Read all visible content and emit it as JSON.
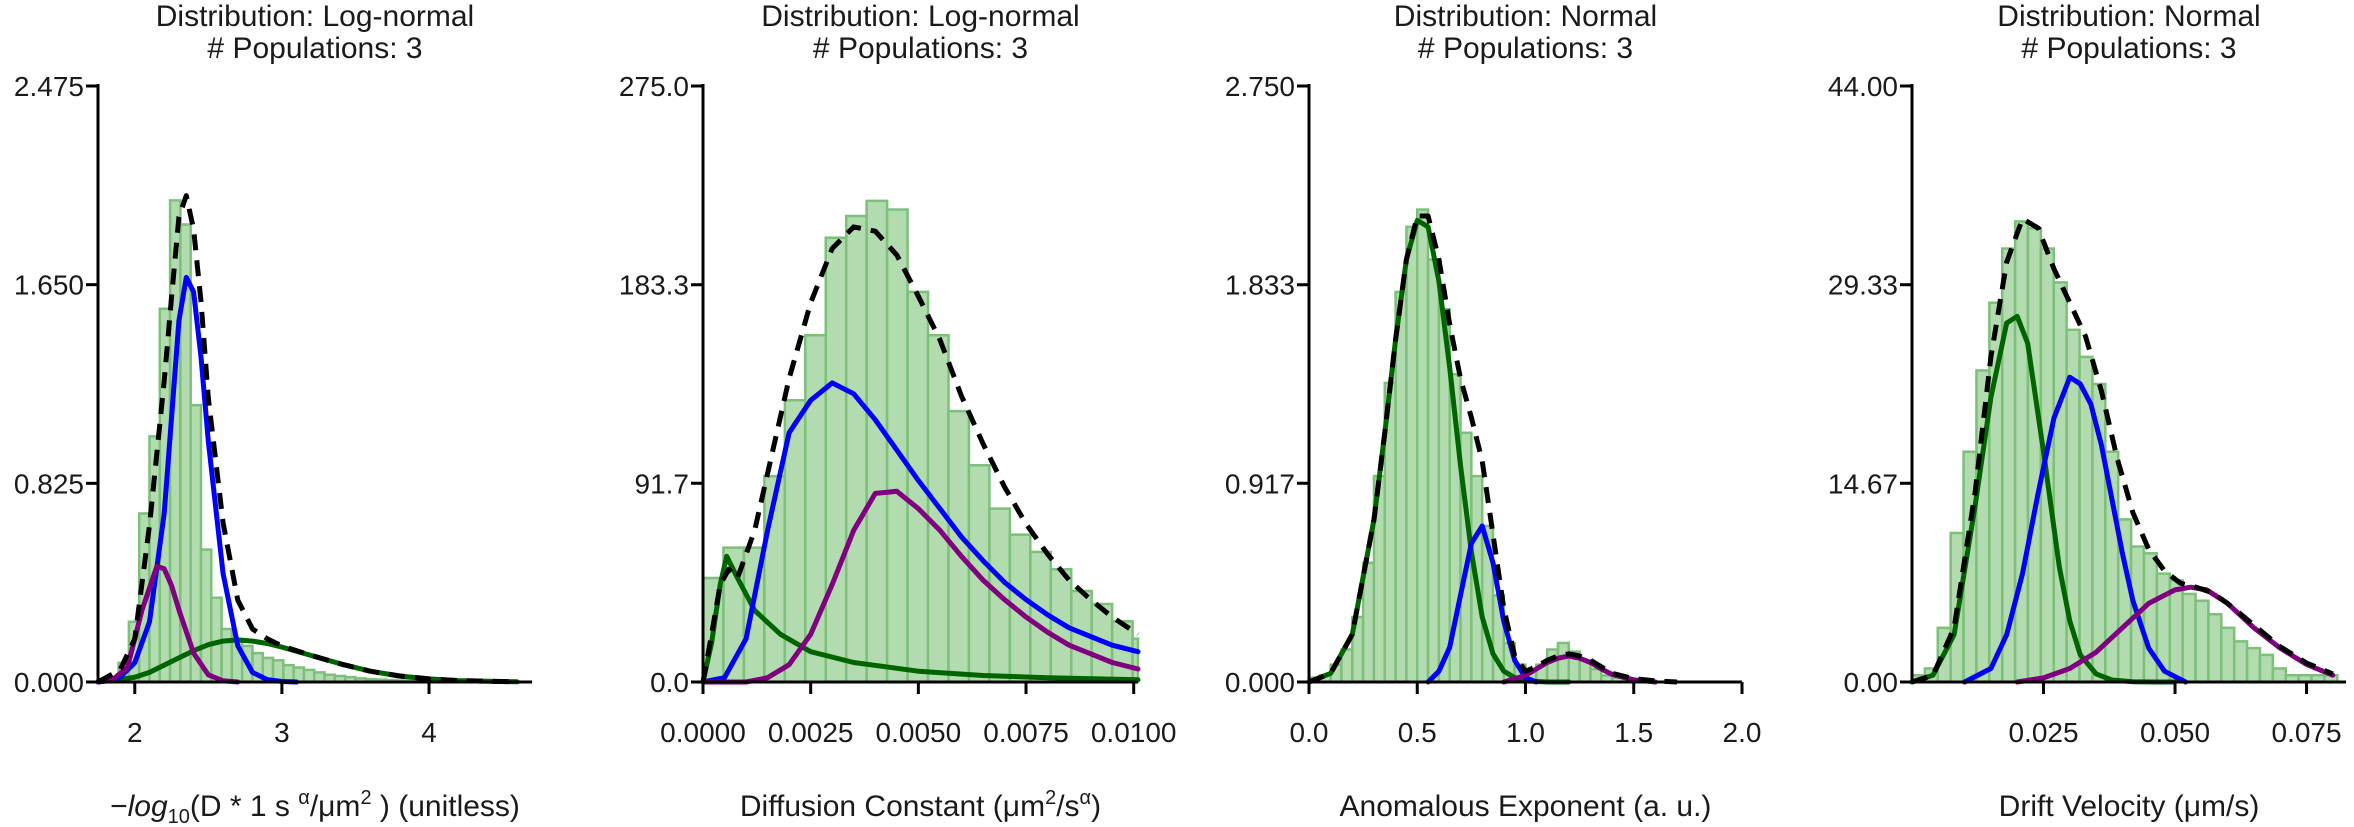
{
  "chart_data": [
    {
      "type": "bar",
      "title": "Distribution: Log-normal",
      "subtitle": "# Populations: 3",
      "xlabel": "−log₁₀(D * 1 s ᵅ/μm² ) (unitless)",
      "xlabel_parts": {
        "prefix": "−",
        "italic": "log",
        "sub": "10",
        "rest": "(D * 1 s ",
        "sup1": "α",
        "mid": "/μm",
        "sup2": "2",
        "tail": " ) (unitless)"
      },
      "xlim": [
        1.75,
        4.7
      ],
      "ylim": [
        0,
        2.475
      ],
      "xticks": [
        2,
        3,
        4
      ],
      "xtick_labels": [
        "2",
        "3",
        "4"
      ],
      "yticks": [
        0,
        0.825,
        1.65,
        2.475
      ],
      "ytick_labels": [
        "0.000",
        "0.825",
        "1.650",
        "2.475"
      ],
      "bins": {
        "x0": 1.75,
        "width": 0.07,
        "values": [
          0.0,
          0.02,
          0.08,
          0.25,
          0.7,
          1.02,
          1.55,
          2.0,
          1.9,
          1.15,
          0.55,
          0.35,
          0.22,
          0.17,
          0.15,
          0.12,
          0.1,
          0.09,
          0.07,
          0.06,
          0.05,
          0.04,
          0.03,
          0.025,
          0.02,
          0.015,
          0.012,
          0.01,
          0.008,
          0.006,
          0.005,
          0.004,
          0.003,
          0.002,
          0.002,
          0.001,
          0.001,
          0.001,
          0.0,
          0.0,
          0.0,
          0.0
        ]
      },
      "series": [
        {
          "color": "#006400",
          "style": "solid",
          "x": [
            1.75,
            1.9,
            2.0,
            2.1,
            2.2,
            2.3,
            2.4,
            2.5,
            2.6,
            2.7,
            2.8,
            2.9,
            3.0,
            3.2,
            3.4,
            3.6,
            3.8,
            4.0,
            4.2,
            4.4,
            4.6
          ],
          "y": [
            0.0,
            0.01,
            0.02,
            0.04,
            0.07,
            0.1,
            0.13,
            0.155,
            0.17,
            0.175,
            0.17,
            0.16,
            0.145,
            0.11,
            0.075,
            0.045,
            0.025,
            0.013,
            0.006,
            0.003,
            0.001
          ]
        },
        {
          "color": "#0000ff",
          "style": "solid",
          "x": [
            1.75,
            1.9,
            2.0,
            2.1,
            2.2,
            2.25,
            2.3,
            2.35,
            2.4,
            2.45,
            2.5,
            2.6,
            2.7,
            2.8,
            2.9,
            3.0,
            3.1
          ],
          "y": [
            0.0,
            0.02,
            0.08,
            0.25,
            0.7,
            1.1,
            1.5,
            1.68,
            1.62,
            1.35,
            1.0,
            0.45,
            0.15,
            0.04,
            0.01,
            0.002,
            0.0
          ]
        },
        {
          "color": "#800080",
          "style": "solid",
          "x": [
            1.75,
            1.85,
            1.95,
            2.05,
            2.15,
            2.2,
            2.25,
            2.3,
            2.4,
            2.5,
            2.6,
            2.7
          ],
          "y": [
            0.0,
            0.01,
            0.06,
            0.3,
            0.48,
            0.47,
            0.4,
            0.3,
            0.12,
            0.03,
            0.005,
            0.0
          ]
        },
        {
          "color": "#000000",
          "style": "dashed",
          "x": [
            1.75,
            1.9,
            2.0,
            2.1,
            2.2,
            2.25,
            2.3,
            2.35,
            2.4,
            2.45,
            2.5,
            2.6,
            2.7,
            2.8,
            2.9,
            3.0,
            3.2,
            3.4,
            3.6,
            3.8,
            4.0,
            4.2,
            4.4,
            4.6
          ],
          "y": [
            0.0,
            0.05,
            0.18,
            0.65,
            1.25,
            1.6,
            1.93,
            2.02,
            1.88,
            1.58,
            1.18,
            0.66,
            0.34,
            0.22,
            0.18,
            0.15,
            0.11,
            0.075,
            0.045,
            0.025,
            0.013,
            0.006,
            0.003,
            0.001
          ]
        }
      ]
    },
    {
      "type": "bar",
      "title": "Distribution: Log-normal",
      "subtitle": "# Populations: 3",
      "xlabel": "Diffusion Constant (μm²/sᵅ)",
      "xlabel_parts": {
        "prefix": "",
        "italic": "",
        "sub": "",
        "rest": "Diffusion Constant (μm",
        "sup1": "2",
        "mid": "/s",
        "sup2": "α",
        "tail": ")"
      },
      "xlim": [
        0,
        0.0101
      ],
      "ylim": [
        0,
        275
      ],
      "xticks": [
        0,
        0.0025,
        0.005,
        0.0075,
        0.01
      ],
      "xtick_labels": [
        "0.0000",
        "0.0025",
        "0.0050",
        "0.0075",
        "0.0100"
      ],
      "yticks": [
        0,
        91.7,
        183.3,
        275
      ],
      "ytick_labels": [
        "0.0",
        "91.7",
        "183.3",
        "275.0"
      ],
      "bins": {
        "x0": 0,
        "width": 0.000475,
        "values": [
          48,
          62,
          62,
          95,
          130,
          160,
          205,
          215,
          222,
          218,
          180,
          160,
          125,
          100,
          80,
          68,
          60,
          52,
          42,
          36,
          28,
          20
        ]
      },
      "series": [
        {
          "color": "#006400",
          "style": "solid",
          "x": [
            0.0,
            0.0002,
            0.0004,
            0.00055,
            0.0008,
            0.0012,
            0.0018,
            0.0025,
            0.0035,
            0.005,
            0.0065,
            0.008,
            0.0101
          ],
          "y": [
            0,
            18,
            45,
            58,
            48,
            33,
            22,
            14,
            9,
            5,
            3,
            2,
            1
          ]
        },
        {
          "color": "#0000ff",
          "style": "solid",
          "x": [
            0.0,
            0.0005,
            0.001,
            0.0015,
            0.002,
            0.0025,
            0.003,
            0.0035,
            0.004,
            0.0045,
            0.005,
            0.0055,
            0.006,
            0.0065,
            0.007,
            0.0075,
            0.008,
            0.0085,
            0.009,
            0.0095,
            0.0101
          ],
          "y": [
            0,
            2,
            20,
            70,
            115,
            130,
            138,
            133,
            121,
            107,
            93,
            80,
            67,
            56,
            46,
            38,
            31,
            25,
            21,
            17,
            14
          ]
        },
        {
          "color": "#800080",
          "style": "solid",
          "x": [
            0.0,
            0.001,
            0.0015,
            0.002,
            0.0025,
            0.003,
            0.0035,
            0.004,
            0.0045,
            0.005,
            0.0055,
            0.006,
            0.0065,
            0.007,
            0.0075,
            0.008,
            0.0085,
            0.009,
            0.0095,
            0.0101
          ],
          "y": [
            0,
            0,
            2,
            8,
            22,
            45,
            70,
            87,
            88,
            80,
            70,
            58,
            47,
            38,
            30,
            23,
            17,
            13,
            9,
            6
          ]
        },
        {
          "color": "#000000",
          "style": "dashed",
          "x": [
            0.0,
            0.0002,
            0.0004,
            0.0006,
            0.0008,
            0.0012,
            0.0016,
            0.002,
            0.0025,
            0.003,
            0.0035,
            0.004,
            0.0045,
            0.005,
            0.0055,
            0.006,
            0.0065,
            0.007,
            0.0075,
            0.008,
            0.0085,
            0.009,
            0.0095,
            0.0101
          ],
          "y": [
            0,
            22,
            45,
            52,
            48,
            70,
            105,
            140,
            175,
            200,
            210,
            208,
            197,
            178,
            158,
            132,
            110,
            90,
            73,
            59,
            47,
            38,
            30,
            22
          ]
        }
      ]
    },
    {
      "type": "bar",
      "title": "Distribution: Normal",
      "subtitle": "# Populations: 3",
      "xlabel": "Anomalous Exponent (a. u.)",
      "xlabel_parts": {
        "prefix": "",
        "italic": "",
        "sub": "",
        "rest": "Anomalous Exponent (a. u.)",
        "sup1": "",
        "mid": "",
        "sup2": "",
        "tail": ""
      },
      "xlim": [
        0,
        2.0
      ],
      "ylim": [
        0,
        2.75
      ],
      "xticks": [
        0,
        0.5,
        1.0,
        1.5,
        2.0
      ],
      "xtick_labels": [
        "0.0",
        "0.5",
        "1.0",
        "1.5",
        "2.0"
      ],
      "yticks": [
        0,
        0.917,
        1.833,
        2.75
      ],
      "ytick_labels": [
        "0.000",
        "0.917",
        "1.833",
        "2.750"
      ],
      "bins": {
        "x0": 0.0,
        "width": 0.05,
        "values": [
          0.02,
          0.03,
          0.08,
          0.15,
          0.3,
          0.55,
          0.95,
          1.38,
          1.8,
          2.1,
          2.18,
          1.95,
          1.72,
          1.42,
          1.15,
          0.95,
          0.72,
          0.4,
          0.18,
          0.08,
          0.05,
          0.08,
          0.15,
          0.18,
          0.14,
          0.1,
          0.06,
          0.03,
          0.02,
          0.01,
          0.01,
          0.0,
          0.0,
          0.0,
          0.0,
          0.0,
          0.0,
          0.0,
          0.0,
          0.0
        ]
      },
      "series": [
        {
          "color": "#006400",
          "style": "solid",
          "x": [
            0.0,
            0.1,
            0.2,
            0.3,
            0.35,
            0.4,
            0.45,
            0.5,
            0.55,
            0.6,
            0.65,
            0.7,
            0.75,
            0.8,
            0.85,
            0.9,
            0.95,
            1.0,
            1.1,
            1.2
          ],
          "y": [
            0.0,
            0.04,
            0.22,
            0.75,
            1.15,
            1.58,
            1.95,
            2.13,
            2.1,
            1.85,
            1.45,
            1.0,
            0.6,
            0.3,
            0.13,
            0.05,
            0.02,
            0.005,
            0.0,
            0.0
          ]
        },
        {
          "color": "#0000ff",
          "style": "solid",
          "x": [
            0.55,
            0.6,
            0.65,
            0.7,
            0.75,
            0.8,
            0.85,
            0.9,
            0.95,
            1.0,
            1.05
          ],
          "y": [
            0.0,
            0.05,
            0.16,
            0.4,
            0.64,
            0.72,
            0.55,
            0.28,
            0.1,
            0.02,
            0.0
          ]
        },
        {
          "color": "#800080",
          "style": "solid",
          "x": [
            0.9,
            1.0,
            1.05,
            1.1,
            1.15,
            1.2,
            1.25,
            1.3,
            1.35,
            1.4,
            1.5,
            1.6
          ],
          "y": [
            0.0,
            0.03,
            0.06,
            0.09,
            0.11,
            0.12,
            0.11,
            0.09,
            0.06,
            0.035,
            0.01,
            0.0
          ]
        },
        {
          "color": "#000000",
          "style": "dashed",
          "x": [
            0.0,
            0.1,
            0.2,
            0.3,
            0.35,
            0.4,
            0.45,
            0.5,
            0.55,
            0.6,
            0.65,
            0.7,
            0.75,
            0.8,
            0.85,
            0.9,
            0.95,
            1.0,
            1.05,
            1.1,
            1.15,
            1.2,
            1.25,
            1.3,
            1.35,
            1.4,
            1.5,
            1.6,
            1.7
          ],
          "y": [
            0.0,
            0.04,
            0.22,
            0.75,
            1.15,
            1.58,
            1.95,
            2.15,
            2.15,
            1.95,
            1.65,
            1.4,
            1.22,
            1.02,
            0.68,
            0.34,
            0.12,
            0.05,
            0.07,
            0.1,
            0.12,
            0.13,
            0.12,
            0.1,
            0.07,
            0.04,
            0.015,
            0.005,
            0.0
          ]
        }
      ]
    },
    {
      "type": "bar",
      "title": "Distribution: Normal",
      "subtitle": "# Populations: 3",
      "xlabel": "Drift Velocity (μm/s)",
      "xlabel_parts": {
        "prefix": "",
        "italic": "",
        "sub": "",
        "rest": "Drift Velocity (μm/s)",
        "sup1": "",
        "mid": "",
        "sup2": "",
        "tail": ""
      },
      "xlim": [
        0,
        0.0825
      ],
      "ylim": [
        0,
        44
      ],
      "xticks": [
        0.025,
        0.05,
        0.075
      ],
      "xtick_labels": [
        "0.025",
        "0.050",
        "0.075"
      ],
      "yticks": [
        0,
        14.67,
        29.33,
        44
      ],
      "ytick_labels": [
        "0.00",
        "14.67",
        "29.33",
        "44.00"
      ],
      "bins": {
        "x0": 0.0,
        "width": 0.00245,
        "values": [
          0.5,
          1.0,
          4.0,
          11.0,
          17.0,
          23.0,
          28.0,
          32.0,
          34.0,
          33.5,
          32.0,
          29.5,
          26.0,
          24.0,
          22.0,
          17.0,
          12.0,
          10.0,
          9.5,
          8.0,
          7.5,
          6.5,
          6.0,
          5.0,
          4.0,
          3.0,
          2.5,
          2.0,
          1.0,
          0.5,
          0.5,
          0.5,
          0.5
        ]
      },
      "series": [
        {
          "color": "#006400",
          "style": "solid",
          "x": [
            0.0,
            0.004,
            0.008,
            0.012,
            0.015,
            0.018,
            0.02,
            0.022,
            0.025,
            0.028,
            0.03,
            0.032,
            0.035,
            0.038,
            0.042,
            0.046,
            0.05
          ],
          "y": [
            0.0,
            0.5,
            3.5,
            13.0,
            21.0,
            26.5,
            27.0,
            25.0,
            17.0,
            8.5,
            4.5,
            2.0,
            0.6,
            0.15,
            0.02,
            0.0,
            0.0
          ]
        },
        {
          "color": "#0000ff",
          "style": "solid",
          "x": [
            0.01,
            0.015,
            0.018,
            0.021,
            0.024,
            0.027,
            0.03,
            0.032,
            0.034,
            0.036,
            0.038,
            0.04,
            0.042,
            0.045,
            0.048,
            0.052
          ],
          "y": [
            0.0,
            1.0,
            3.5,
            8.0,
            14.0,
            19.5,
            22.5,
            22.0,
            20.5,
            17.5,
            13.5,
            9.5,
            6.0,
            2.5,
            0.8,
            0.0
          ]
        },
        {
          "color": "#800080",
          "style": "solid",
          "x": [
            0.02,
            0.025,
            0.03,
            0.035,
            0.04,
            0.045,
            0.05,
            0.053,
            0.056,
            0.06,
            0.065,
            0.07,
            0.075,
            0.08
          ],
          "y": [
            0.0,
            0.3,
            1.0,
            2.2,
            4.0,
            5.8,
            6.8,
            7.0,
            6.8,
            5.8,
            4.0,
            2.5,
            1.3,
            0.5
          ]
        },
        {
          "color": "#000000",
          "style": "dashed",
          "x": [
            0.0,
            0.004,
            0.008,
            0.012,
            0.015,
            0.018,
            0.021,
            0.024,
            0.027,
            0.03,
            0.033,
            0.036,
            0.039,
            0.042,
            0.045,
            0.048,
            0.051,
            0.054,
            0.057,
            0.06,
            0.065,
            0.07,
            0.075,
            0.08
          ],
          "y": [
            0.0,
            0.5,
            4.0,
            14.0,
            24.0,
            31.0,
            34.2,
            33.5,
            30.5,
            28.0,
            25.5,
            21.5,
            16.5,
            12.5,
            9.8,
            8.2,
            7.3,
            7.0,
            6.6,
            5.8,
            4.2,
            2.6,
            1.4,
            0.6
          ]
        }
      ]
    }
  ],
  "style": {
    "bar_fill": "#b3dbb0",
    "bar_edge": "#7cc07a"
  }
}
